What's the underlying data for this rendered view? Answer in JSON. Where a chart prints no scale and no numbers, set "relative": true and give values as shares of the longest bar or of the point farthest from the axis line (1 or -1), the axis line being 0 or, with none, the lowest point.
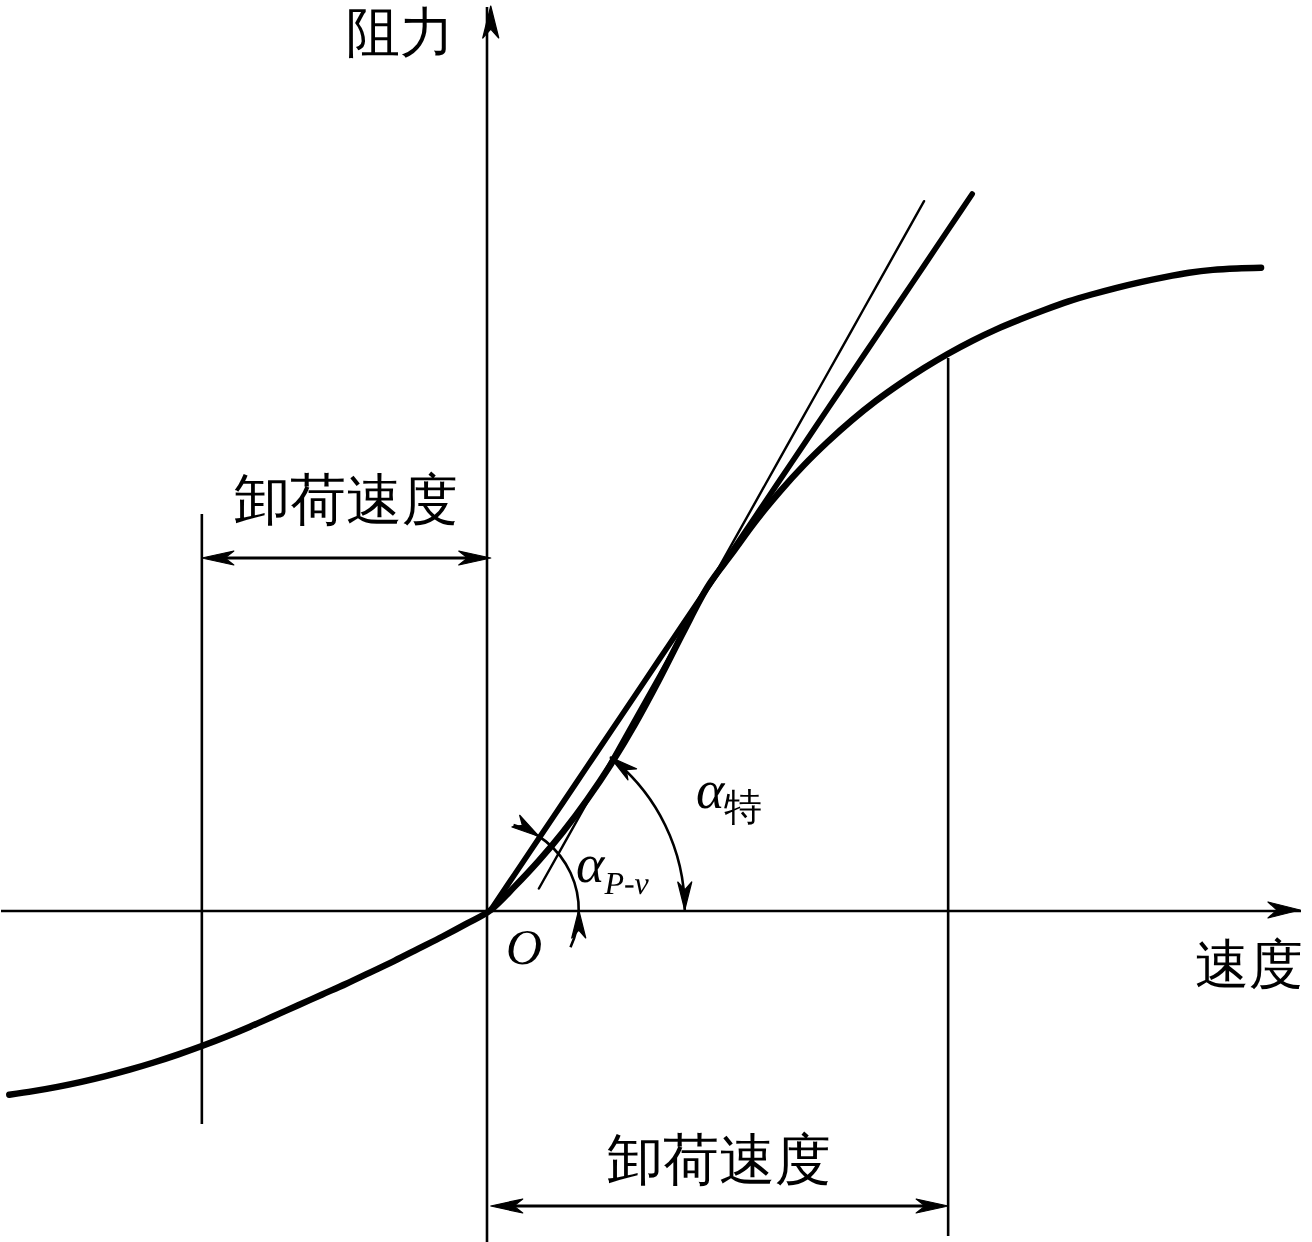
{
  "chart_data": {
    "type": "line",
    "relative": true,
    "xlabel": "速度",
    "ylabel": "阻力",
    "categories": [
      null,
      null,
      null,
      null,
      null,
      null,
      null,
      null,
      null,
      null,
      null,
      null,
      null,
      null,
      null,
      null,
      null,
      null,
      null,
      null,
      null,
      null,
      null,
      null,
      null,
      null,
      null,
      null,
      null,
      null,
      null,
      null,
      null,
      null,
      null,
      null,
      null,
      null,
      null,
      null,
      null,
      null,
      null,
      null,
      null,
      null,
      null,
      null,
      null,
      null,
      null,
      null,
      null
    ],
    "series": [
      {
        "color": "#000000",
        "values": [
          -0.258,
          -0.253,
          -0.247,
          -0.24,
          -0.232,
          -0.223,
          -0.213,
          -0.202,
          -0.19,
          -0.177,
          -0.163,
          -0.148,
          -0.133,
          -0.118,
          -0.103,
          -0.087,
          -0.071,
          -0.054,
          -0.037,
          -0.019,
          0,
          0.033,
          0.069,
          0.109,
          0.154,
          0.204,
          0.26,
          0.322,
          0.388,
          0.451,
          0.497,
          0.543,
          0.584,
          0.621,
          0.654,
          0.684,
          0.711,
          0.735,
          0.757,
          0.777,
          0.795,
          0.811,
          0.825,
          0.838,
          0.85,
          0.86,
          0.869,
          0.877,
          0.884,
          0.89,
          0.894,
          0.896,
          0.897
        ]
      },
      {
        "color": "#000000",
        "values": [
          null,
          null,
          null,
          null,
          null,
          null,
          null,
          null,
          null,
          null,
          null,
          null,
          null,
          null,
          null,
          null,
          null,
          null,
          null,
          null,
          0,
          0.05,
          0.1,
          0.15,
          0.2,
          0.25,
          0.3,
          0.35,
          0.4,
          0.45,
          0.5,
          0.55,
          0.6,
          0.65,
          0.7,
          0.75,
          0.8,
          0.85,
          0.9,
          0.95,
          1,
          null,
          null,
          null,
          null,
          null,
          null,
          null,
          null,
          null,
          null,
          null,
          null
        ]
      },
      {
        "color": "#000000",
        "values": [
          null,
          null,
          null,
          null,
          null,
          null,
          null,
          null,
          null,
          null,
          null,
          null,
          null,
          null,
          null,
          null,
          null,
          null,
          null,
          null,
          null,
          null,
          0.03,
          0.09,
          0.15,
          0.21,
          0.27,
          0.33,
          0.39,
          0.45,
          0.51,
          0.57,
          0.63,
          0.69,
          0.75,
          0.81,
          0.87,
          0.93,
          0.99,
          null,
          null,
          null,
          null,
          null,
          null,
          null,
          null,
          null,
          null,
          null,
          null,
          null,
          null
        ]
      }
    ],
    "annotations": [
      "卸荷速度",
      "α$_{特}$",
      "α$_{P-v}$",
      "O",
      "卸荷速度"
    ]
  }
}
